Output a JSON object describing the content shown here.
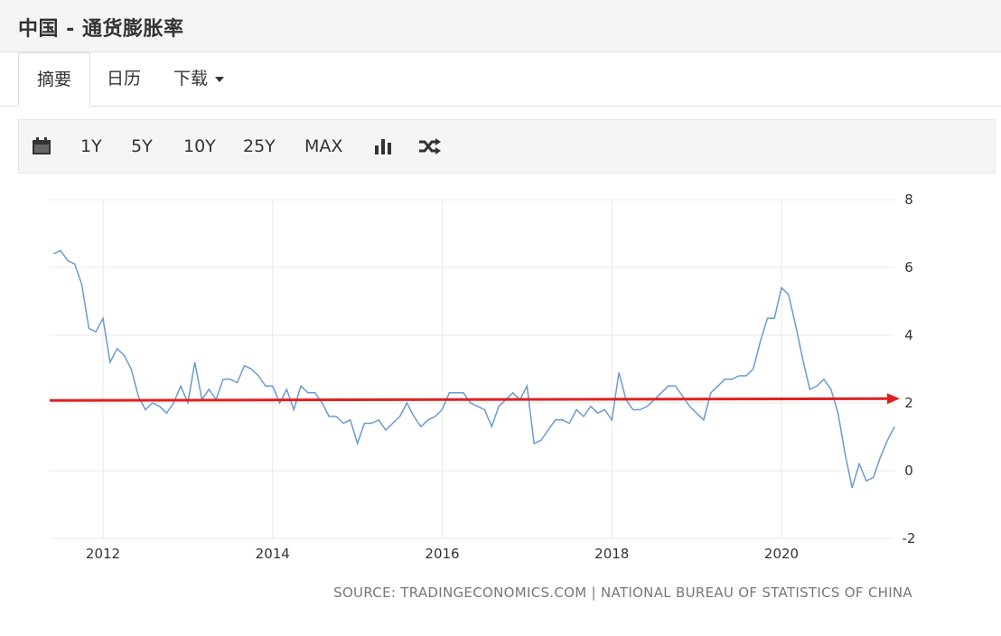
{
  "header": {
    "title": "中国 - 通货膨胀率"
  },
  "tabs": [
    {
      "label": "摘要",
      "active": true
    },
    {
      "label": "日历"
    },
    {
      "label": "下载",
      "has_dropdown": true
    }
  ],
  "toolbar": {
    "calendar_icon": "calendar-icon",
    "ranges": [
      "1Y",
      "5Y",
      "10Y",
      "25Y",
      "MAX"
    ],
    "bar_chart_icon": "bar-chart-icon",
    "shuffle_icon": "shuffle-icon"
  },
  "chart_data": {
    "type": "line",
    "ylim": [
      -2,
      8
    ],
    "yticks": [
      "8",
      "6",
      "4",
      "2",
      "0",
      "-2"
    ],
    "xticks": [
      "2012",
      "2014",
      "2016",
      "2018",
      "2020"
    ],
    "grid": true,
    "line_color": "#6a9bcf",
    "series": [
      {
        "x": [
          "2011-06",
          "2011-07",
          "2011-08",
          "2011-09",
          "2011-10",
          "2011-11",
          "2011-12",
          "2012-01",
          "2012-02",
          "2012-03",
          "2012-04",
          "2012-05",
          "2012-06",
          "2012-07",
          "2012-08",
          "2012-09",
          "2012-10",
          "2012-11",
          "2012-12",
          "2013-01",
          "2013-02",
          "2013-03",
          "2013-04",
          "2013-05",
          "2013-06",
          "2013-07",
          "2013-08",
          "2013-09",
          "2013-10",
          "2013-11",
          "2013-12",
          "2014-01",
          "2014-02",
          "2014-03",
          "2014-04",
          "2014-05",
          "2014-06",
          "2014-07",
          "2014-08",
          "2014-09",
          "2014-10",
          "2014-11",
          "2014-12",
          "2015-01",
          "2015-02",
          "2015-03",
          "2015-04",
          "2015-05",
          "2015-06",
          "2015-07",
          "2015-08",
          "2015-09",
          "2015-10",
          "2015-11",
          "2015-12",
          "2016-01",
          "2016-02",
          "2016-03",
          "2016-04",
          "2016-05",
          "2016-06",
          "2016-07",
          "2016-08",
          "2016-09",
          "2016-10",
          "2016-11",
          "2016-12",
          "2017-01",
          "2017-02",
          "2017-03",
          "2017-04",
          "2017-05",
          "2017-06",
          "2017-07",
          "2017-08",
          "2017-09",
          "2017-10",
          "2017-11",
          "2017-12",
          "2018-01",
          "2018-02",
          "2018-03",
          "2018-04",
          "2018-05",
          "2018-06",
          "2018-07",
          "2018-08",
          "2018-09",
          "2018-10",
          "2018-11",
          "2018-12",
          "2019-01",
          "2019-02",
          "2019-03",
          "2019-04",
          "2019-05",
          "2019-06",
          "2019-07",
          "2019-08",
          "2019-09",
          "2019-10",
          "2019-11",
          "2019-12",
          "2020-01",
          "2020-02",
          "2020-03",
          "2020-04",
          "2020-05",
          "2020-06",
          "2020-07",
          "2020-08",
          "2020-09",
          "2020-10",
          "2020-11",
          "2020-12",
          "2021-01",
          "2021-02",
          "2021-03",
          "2021-04",
          "2021-05"
        ],
        "values": [
          6.4,
          6.5,
          6.2,
          6.1,
          5.5,
          4.2,
          4.1,
          4.5,
          3.2,
          3.6,
          3.4,
          3.0,
          2.2,
          1.8,
          2.0,
          1.9,
          1.7,
          2.0,
          2.5,
          2.0,
          3.2,
          2.1,
          2.4,
          2.1,
          2.7,
          2.7,
          2.6,
          3.1,
          3.0,
          2.8,
          2.5,
          2.5,
          2.0,
          2.4,
          1.8,
          2.5,
          2.3,
          2.3,
          2.0,
          1.6,
          1.6,
          1.4,
          1.5,
          0.8,
          1.4,
          1.4,
          1.5,
          1.2,
          1.4,
          1.6,
          2.0,
          1.6,
          1.3,
          1.5,
          1.6,
          1.8,
          2.3,
          2.3,
          2.3,
          2.0,
          1.9,
          1.8,
          1.3,
          1.9,
          2.1,
          2.3,
          2.1,
          2.5,
          0.8,
          0.9,
          1.2,
          1.5,
          1.5,
          1.4,
          1.8,
          1.6,
          1.9,
          1.7,
          1.8,
          1.5,
          2.9,
          2.1,
          1.8,
          1.8,
          1.9,
          2.1,
          2.3,
          2.5,
          2.5,
          2.2,
          1.9,
          1.7,
          1.5,
          2.3,
          2.5,
          2.7,
          2.7,
          2.8,
          2.8,
          3.0,
          3.8,
          4.5,
          4.5,
          5.4,
          5.2,
          4.3,
          3.3,
          2.4,
          2.5,
          2.7,
          2.4,
          1.7,
          0.5,
          -0.5,
          0.2,
          -0.3,
          -0.2,
          0.4,
          0.9,
          1.3
        ]
      }
    ],
    "reference_arrow": {
      "y": 2.1,
      "color": "#e02020"
    }
  },
  "footer": {
    "source": "SOURCE: TRADINGECONOMICS.COM | NATIONAL BUREAU OF STATISTICS OF CHINA"
  }
}
